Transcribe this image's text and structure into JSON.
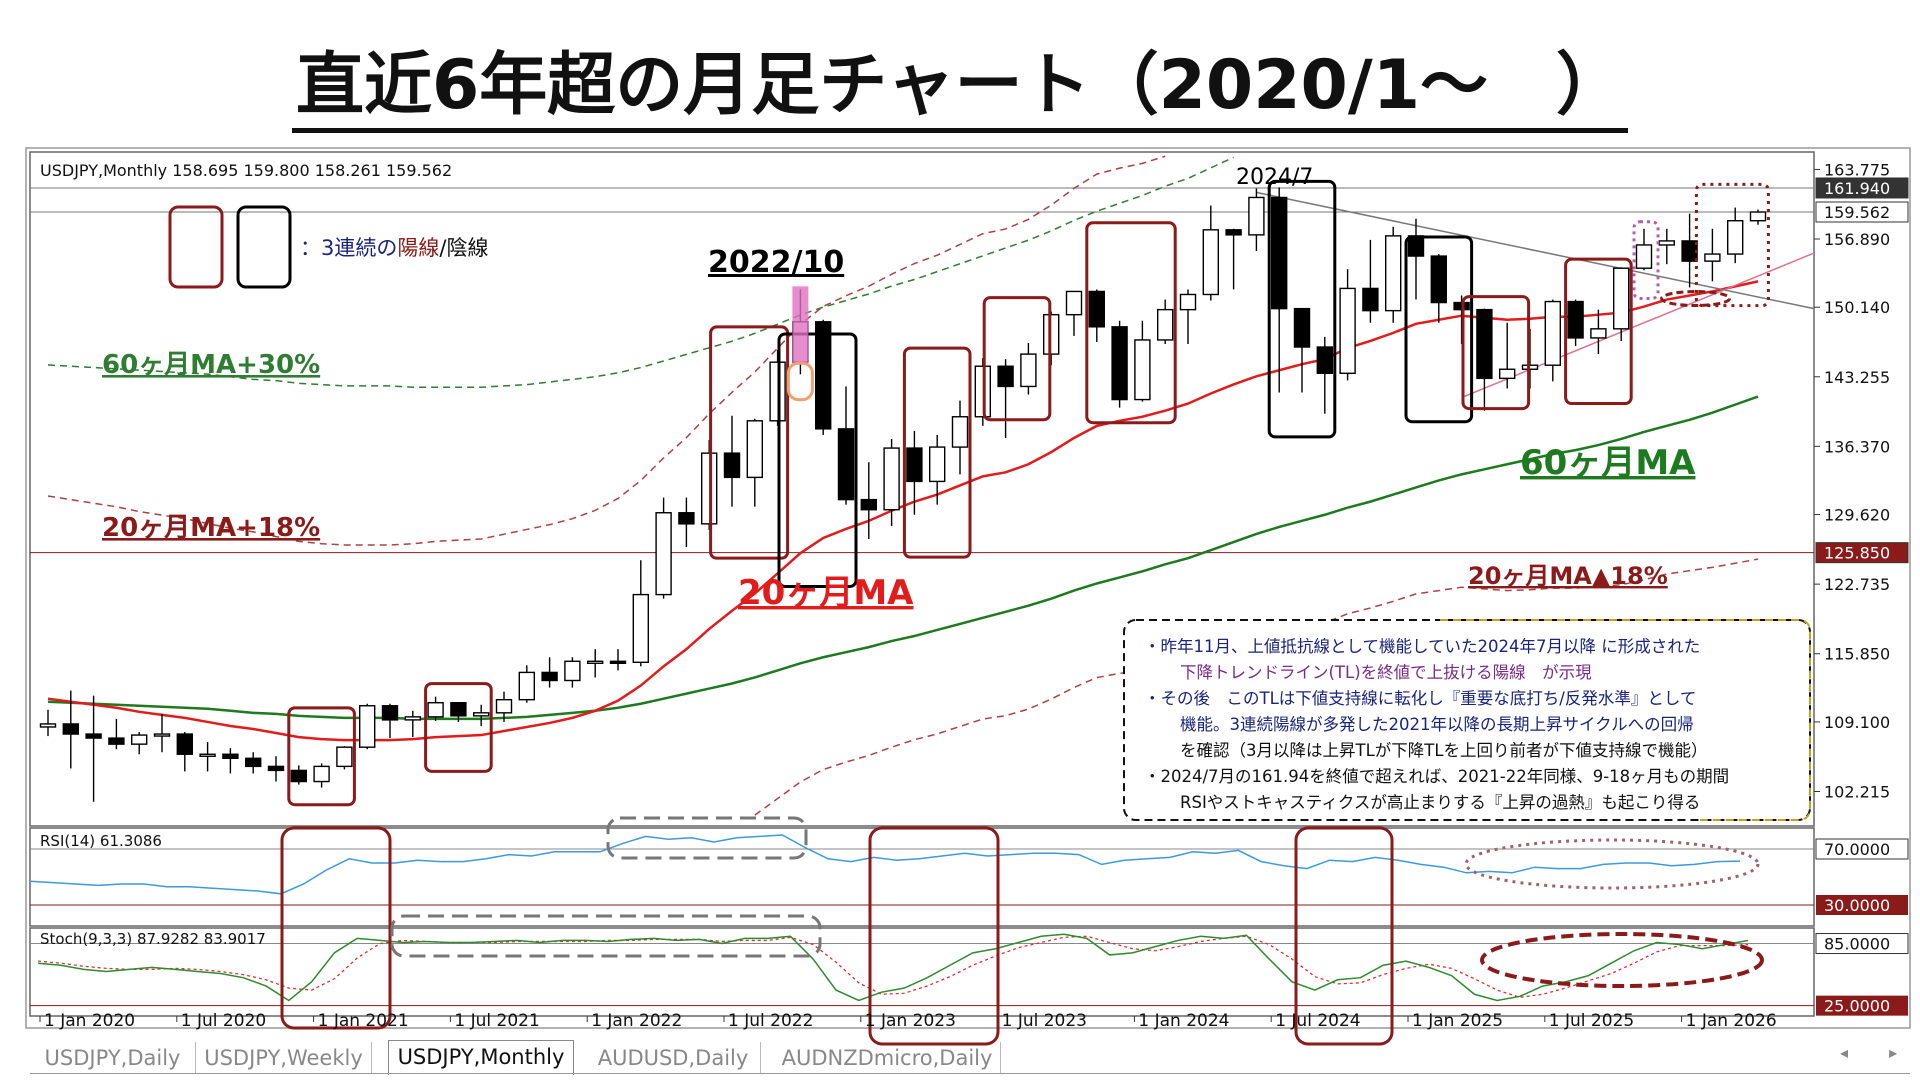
{
  "title": "直近6年超の月足チャート（2020/1～　）",
  "tabs": [
    {
      "label": "USDJPY,Daily",
      "active": false
    },
    {
      "label": "USDJPY,Weekly",
      "active": false
    },
    {
      "label": "USDJPY,Monthly",
      "active": true
    },
    {
      "label": "AUDUSD,Daily",
      "active": false
    },
    {
      "label": "AUDNZDmicro,Daily",
      "active": false
    }
  ],
  "nav_arrows": "◂ ▸",
  "chart_data": {
    "type": "candlestick",
    "symbol_header": "USDJPY,Monthly  158.695 159.800 158.261 159.562",
    "ylim": [
      98.8,
      165.5
    ],
    "y_ticks": [
      163.775,
      156.89,
      150.14,
      143.255,
      136.37,
      129.62,
      122.735,
      115.85,
      109.1,
      102.215
    ],
    "price_tags": [
      {
        "value": 161.94,
        "color": "#ffffff",
        "bg": "#333333"
      },
      {
        "value": 159.562,
        "color": "#111111",
        "bg": "#ffffff"
      },
      {
        "value": 125.85,
        "color": "#ffffff",
        "bg": "#8b1a1a"
      }
    ],
    "x_ticks": [
      {
        "label": "1 Jan 2020",
        "index": 0
      },
      {
        "label": "1 Jul 2020",
        "index": 6
      },
      {
        "label": "1 Jan 2021",
        "index": 12
      },
      {
        "label": "1 Jul 2021",
        "index": 18
      },
      {
        "label": "1 Jan 2022",
        "index": 24
      },
      {
        "label": "1 Jul 2022",
        "index": 30
      },
      {
        "label": "1 Jan 2023",
        "index": 36
      },
      {
        "label": "1 Jul 2023",
        "index": 42
      },
      {
        "label": "1 Jan 2024",
        "index": 48
      },
      {
        "label": "1 Jul 2024",
        "index": 54
      },
      {
        "label": "1 Jan 2025",
        "index": 60
      },
      {
        "label": "1 Jul 2025",
        "index": 66
      },
      {
        "label": "1 Jan 2026",
        "index": 72
      }
    ],
    "ohlc": [
      [
        108.6,
        110.3,
        107.7,
        108.9
      ],
      [
        108.9,
        112.2,
        104.5,
        107.9
      ],
      [
        107.9,
        111.7,
        101.2,
        107.5
      ],
      [
        107.5,
        109.4,
        106.4,
        106.9
      ],
      [
        106.9,
        108.1,
        105.9,
        107.8
      ],
      [
        107.8,
        109.9,
        106.1,
        107.9
      ],
      [
        107.9,
        108.1,
        104.2,
        105.9
      ],
      [
        105.9,
        107.1,
        104.2,
        105.9
      ],
      [
        105.9,
        106.5,
        104.0,
        105.5
      ],
      [
        105.5,
        106.1,
        104.0,
        104.7
      ],
      [
        104.7,
        105.7,
        103.2,
        104.3
      ],
      [
        104.3,
        104.8,
        102.9,
        103.2
      ],
      [
        103.2,
        105.0,
        102.6,
        104.7
      ],
      [
        104.7,
        106.7,
        104.4,
        106.6
      ],
      [
        106.6,
        110.9,
        106.4,
        110.7
      ],
      [
        110.7,
        110.9,
        107.5,
        109.3
      ],
      [
        109.3,
        110.2,
        107.6,
        109.6
      ],
      [
        109.6,
        111.6,
        109.2,
        111.0
      ],
      [
        111.0,
        111.0,
        109.1,
        109.7
      ],
      [
        109.7,
        110.8,
        108.7,
        110.0
      ],
      [
        110.0,
        112.1,
        109.1,
        111.3
      ],
      [
        111.3,
        114.7,
        111.0,
        114.0
      ],
      [
        114.0,
        115.5,
        112.5,
        113.2
      ],
      [
        113.2,
        115.5,
        112.5,
        115.1
      ],
      [
        115.1,
        116.3,
        113.5,
        115.1
      ],
      [
        115.1,
        116.3,
        114.2,
        115.0
      ],
      [
        115.0,
        125.1,
        114.6,
        121.7
      ],
      [
        121.7,
        131.3,
        121.3,
        129.8
      ],
      [
        129.8,
        131.3,
        126.4,
        128.7
      ],
      [
        128.7,
        137.0,
        128.1,
        135.7
      ],
      [
        135.7,
        139.4,
        130.4,
        133.3
      ],
      [
        133.3,
        139.1,
        130.4,
        138.9
      ],
      [
        138.9,
        145.9,
        138.4,
        144.7
      ],
      [
        144.7,
        151.9,
        143.5,
        148.7
      ],
      [
        148.7,
        148.9,
        137.5,
        138.1
      ],
      [
        138.1,
        142.3,
        130.6,
        131.1
      ],
      [
        131.1,
        134.8,
        127.2,
        130.1
      ],
      [
        130.1,
        137.1,
        128.5,
        136.2
      ],
      [
        136.2,
        137.9,
        129.6,
        132.9
      ],
      [
        132.9,
        137.5,
        130.6,
        136.3
      ],
      [
        136.3,
        140.9,
        133.6,
        139.3
      ],
      [
        139.3,
        145.1,
        138.4,
        144.3
      ],
      [
        144.3,
        145.0,
        137.2,
        142.3
      ],
      [
        142.3,
        146.6,
        141.5,
        145.5
      ],
      [
        145.5,
        149.7,
        144.4,
        149.4
      ],
      [
        149.4,
        151.7,
        147.3,
        151.7
      ],
      [
        151.7,
        151.9,
        146.7,
        148.2
      ],
      [
        148.2,
        148.8,
        140.2,
        141.0
      ],
      [
        141.0,
        148.8,
        140.8,
        146.9
      ],
      [
        146.9,
        150.9,
        146.5,
        149.9
      ],
      [
        149.9,
        151.9,
        146.5,
        151.4
      ],
      [
        151.4,
        160.2,
        150.8,
        157.8
      ],
      [
        157.8,
        157.9,
        151.9,
        157.3
      ],
      [
        157.3,
        161.9,
        155.7,
        161.0
      ],
      [
        161.0,
        162.0,
        141.7,
        150.0
      ],
      [
        150.0,
        149.4,
        141.7,
        146.2
      ],
      [
        146.2,
        147.2,
        139.6,
        143.6
      ],
      [
        143.6,
        153.9,
        142.9,
        152.0
      ],
      [
        152.0,
        156.8,
        148.6,
        149.8
      ],
      [
        149.8,
        158.1,
        148.6,
        157.2
      ],
      [
        157.2,
        158.9,
        150.9,
        155.2
      ],
      [
        155.2,
        155.4,
        148.6,
        150.6
      ],
      [
        150.6,
        151.3,
        146.5,
        149.9
      ],
      [
        149.9,
        150.0,
        139.9,
        143.1
      ],
      [
        143.1,
        148.6,
        142.1,
        144.0
      ],
      [
        144.0,
        148.0,
        142.1,
        144.4
      ],
      [
        144.4,
        150.9,
        142.8,
        150.7
      ],
      [
        150.7,
        150.9,
        146.3,
        147.1
      ],
      [
        147.1,
        149.9,
        145.5,
        148.0
      ],
      [
        148.0,
        154.1,
        146.8,
        154.0
      ],
      [
        154.0,
        157.9,
        153.8,
        156.3
      ],
      [
        156.3,
        157.9,
        154.4,
        156.7
      ],
      [
        156.7,
        159.4,
        152.1,
        154.7
      ],
      [
        154.7,
        157.9,
        152.7,
        155.4
      ],
      [
        155.4,
        160.0,
        154.5,
        158.7
      ],
      [
        158.7,
        159.8,
        158.3,
        159.56
      ]
    ],
    "ma20": [
      111.4,
      111.1,
      110.8,
      110.5,
      110.1,
      109.8,
      109.5,
      109.1,
      108.7,
      108.4,
      108.0,
      107.6,
      107.4,
      107.3,
      107.3,
      107.3,
      107.4,
      107.6,
      107.7,
      107.8,
      108.2,
      108.6,
      109.0,
      109.5,
      110.2,
      111.2,
      112.7,
      114.6,
      116.3,
      118.3,
      120.1,
      121.8,
      123.8,
      125.8,
      127.3,
      128.2,
      129.0,
      130.0,
      130.9,
      131.6,
      132.5,
      133.4,
      133.8,
      134.6,
      135.8,
      137.2,
      138.4,
      138.9,
      139.3,
      139.9,
      140.6,
      141.6,
      142.5,
      143.3,
      143.9,
      144.5,
      145.0,
      146.1,
      146.8,
      147.6,
      148.5,
      148.9,
      149.3,
      149.1,
      148.9,
      149.0,
      149.2,
      149.2,
      149.4,
      149.6,
      150.2,
      150.9,
      151.3,
      151.7,
      152.2,
      152.7
    ],
    "ma60": [
      111.1,
      111.0,
      110.9,
      110.8,
      110.7,
      110.6,
      110.5,
      110.4,
      110.2,
      110.0,
      109.9,
      109.7,
      109.6,
      109.5,
      109.5,
      109.5,
      109.4,
      109.4,
      109.4,
      109.4,
      109.5,
      109.6,
      109.8,
      110.0,
      110.2,
      110.5,
      110.9,
      111.4,
      111.9,
      112.4,
      112.9,
      113.5,
      114.2,
      114.9,
      115.5,
      116.0,
      116.5,
      117.1,
      117.6,
      118.2,
      118.8,
      119.4,
      120.0,
      120.6,
      121.3,
      122.1,
      122.8,
      123.4,
      124.0,
      124.7,
      125.3,
      126.1,
      126.9,
      127.7,
      128.4,
      129.0,
      129.6,
      130.3,
      130.9,
      131.6,
      132.3,
      133.0,
      133.6,
      134.1,
      134.6,
      135.1,
      135.6,
      136.0,
      136.5,
      137.1,
      137.8,
      138.4,
      139.0,
      139.7,
      140.5,
      141.3
    ],
    "rsi": {
      "label": "RSI(14) 61.3086",
      "levels": [
        70,
        30
      ],
      "ylim": [
        15,
        85
      ],
      "values": [
        47,
        46,
        45,
        44,
        45,
        45,
        43,
        43,
        42,
        41,
        40,
        38,
        45,
        55,
        63,
        60,
        60,
        62,
        61,
        61,
        63,
        66,
        65,
        68,
        68,
        68,
        74,
        79,
        77,
        78,
        75,
        78,
        79,
        80,
        71,
        63,
        61,
        64,
        62,
        63,
        65,
        67,
        65,
        66,
        67,
        67,
        66,
        59,
        62,
        63,
        64,
        68,
        67,
        69,
        61,
        58,
        56,
        62,
        61,
        64,
        62,
        59,
        57,
        53,
        54,
        53,
        57,
        56,
        56,
        59,
        60,
        60,
        58,
        59,
        61,
        61.3
      ]
    },
    "stoch": {
      "label": "Stoch(9,3,3) 87.9282 83.9017",
      "levels": [
        85,
        25
      ],
      "ylim": [
        15,
        100
      ],
      "k": [
        66,
        64,
        60,
        58,
        60,
        62,
        60,
        58,
        56,
        52,
        44,
        30,
        48,
        76,
        90,
        88,
        86,
        87,
        86,
        86,
        87,
        88,
        86,
        88,
        88,
        87,
        89,
        90,
        88,
        89,
        85,
        90,
        90,
        92,
        70,
        40,
        30,
        38,
        42,
        52,
        64,
        76,
        80,
        86,
        92,
        94,
        90,
        74,
        76,
        82,
        88,
        92,
        90,
        93,
        70,
        48,
        40,
        50,
        52,
        64,
        68,
        62,
        54,
        36,
        30,
        34,
        44,
        48,
        54,
        66,
        78,
        86,
        84,
        80,
        84,
        87.9
      ],
      "d": [
        68,
        66,
        63,
        61,
        60,
        60,
        61,
        60,
        58,
        55,
        50,
        42,
        40,
        51,
        71,
        85,
        88,
        87,
        86,
        86,
        86,
        87,
        87,
        87,
        87,
        88,
        88,
        89,
        89,
        89,
        87,
        88,
        88,
        91,
        84,
        67,
        47,
        36,
        37,
        44,
        53,
        64,
        73,
        81,
        86,
        91,
        92,
        86,
        80,
        78,
        82,
        87,
        90,
        92,
        84,
        70,
        53,
        46,
        47,
        55,
        61,
        65,
        61,
        51,
        40,
        33,
        36,
        42,
        49,
        56,
        66,
        77,
        83,
        83,
        83,
        83.9
      ]
    },
    "annotations": {
      "label_2022_10": "2022/10",
      "label_2024_7": "2024/7",
      "legend_text_prefix": "：3連続の",
      "legend_text_yang": "陽線",
      "legend_text_sep": "/",
      "legend_text_yin": "陰線",
      "ma60_plus30": "60ヶ月MA+30%",
      "ma20_plus18": "20ヶ月MA+18%",
      "ma20_label": "20ヶ月MA",
      "ma60_label": "60ヶ月MA",
      "ma20_minus18": "20ヶ月MA▲18%",
      "note_line1": "・昨年11月、上値抵抗線として機能していた2024年7月以降 に形成された",
      "note_line2": "下降トレンドライン(TL)を終値で上抜ける陽線　が示現",
      "note_line3": "・その後　このTLは下値支持線に転化し『重要な底打ち/反発水準』として",
      "note_line4": "機能。3連続陽線が多発した2021年以降の長期上昇サイクルへの回帰",
      "note_line5": "を確認（3月以降は上昇TLが下降TLを上回り前者が下値支持線で機能）",
      "note_line6": "・2024/7月の161.94を終値で超えれば、2021-22年同様、9-18ヶ月もの期間",
      "note_line7": "RSIやストキャスティクスが高止まりする『上昇の過熱』も起こり得る"
    }
  }
}
